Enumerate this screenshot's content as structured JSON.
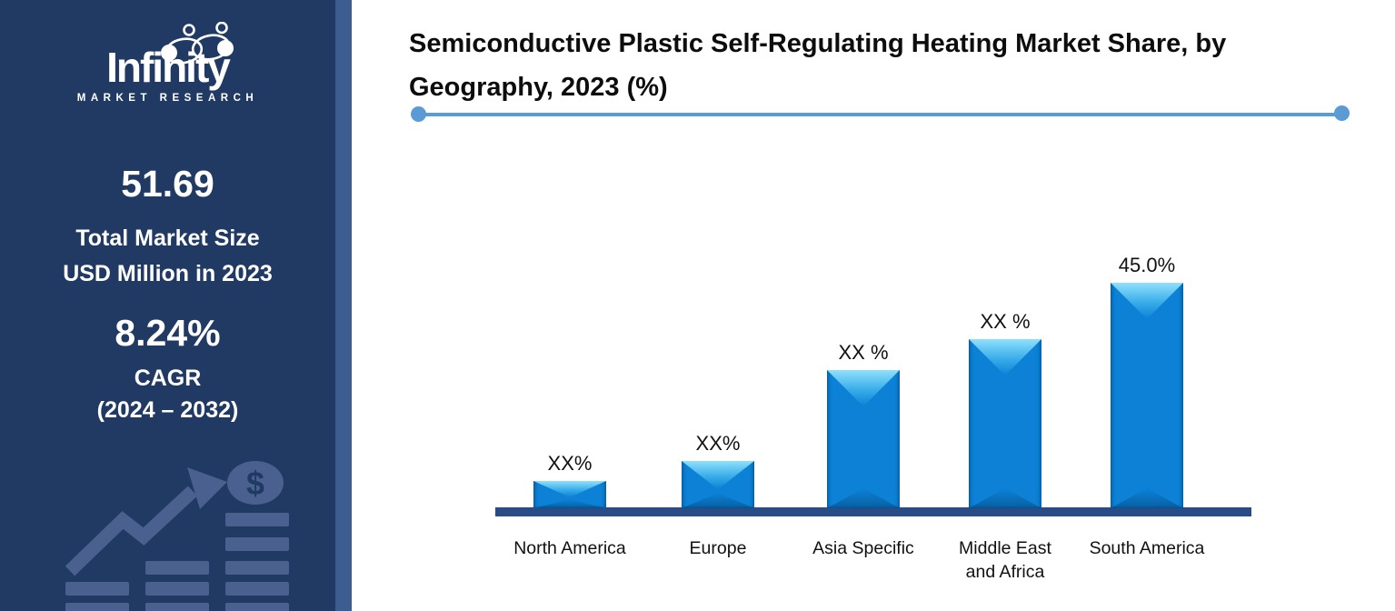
{
  "sidebar": {
    "logo": {
      "name": "Infinity",
      "subtitle": "MARKET RESEARCH",
      "icon": "infinity-people-icon"
    },
    "stats": [
      {
        "value": "51.69",
        "label_lines": [
          "Total Market Size",
          "USD Million in 2023"
        ]
      },
      {
        "value": "8.24%",
        "label_lines": [
          "CAGR",
          "(2024 – 2032)"
        ]
      }
    ],
    "decoration_icon": "growth-arrow-coin-stacks-icon"
  },
  "header": {
    "title_lines": [
      "Semiconductive Plastic Self-Regulating Heating Market Share, by",
      "Geography, 2023 (%)"
    ]
  },
  "chart_data": {
    "type": "bar",
    "title": "Semiconductive Plastic Self-Regulating Heating Market Share, by Geography, 2023 (%)",
    "categories": [
      "North America",
      "Europe",
      "Asia Specific",
      "Middle East and Africa",
      "South America"
    ],
    "category_label_lines": [
      [
        "North America"
      ],
      [
        "Europe"
      ],
      [
        "Asia Specific"
      ],
      [
        "Middle East",
        "and Africa"
      ],
      [
        "South America"
      ]
    ],
    "values": [
      5.4,
      9.4,
      27.6,
      33.8,
      45.0
    ],
    "value_labels": [
      "XX%",
      "XX%",
      "XX %",
      "XX %",
      "45.0%"
    ],
    "xlabel": "",
    "ylabel": "",
    "ylim": [
      0,
      50
    ],
    "grid": false,
    "legend": false,
    "bar_color": "#0C81D5",
    "bar_highlight": "#8FE0FC",
    "axis_color": "#2A4C86"
  },
  "colors": {
    "sidebar_bg": "#203A64",
    "sidebar_edge": "#3D5C8F",
    "divider_blue": "#5B9BD5",
    "title_text": "#0D0D0D",
    "sidebar_text": "#FFFFFF",
    "decoration": "#4A6190"
  }
}
